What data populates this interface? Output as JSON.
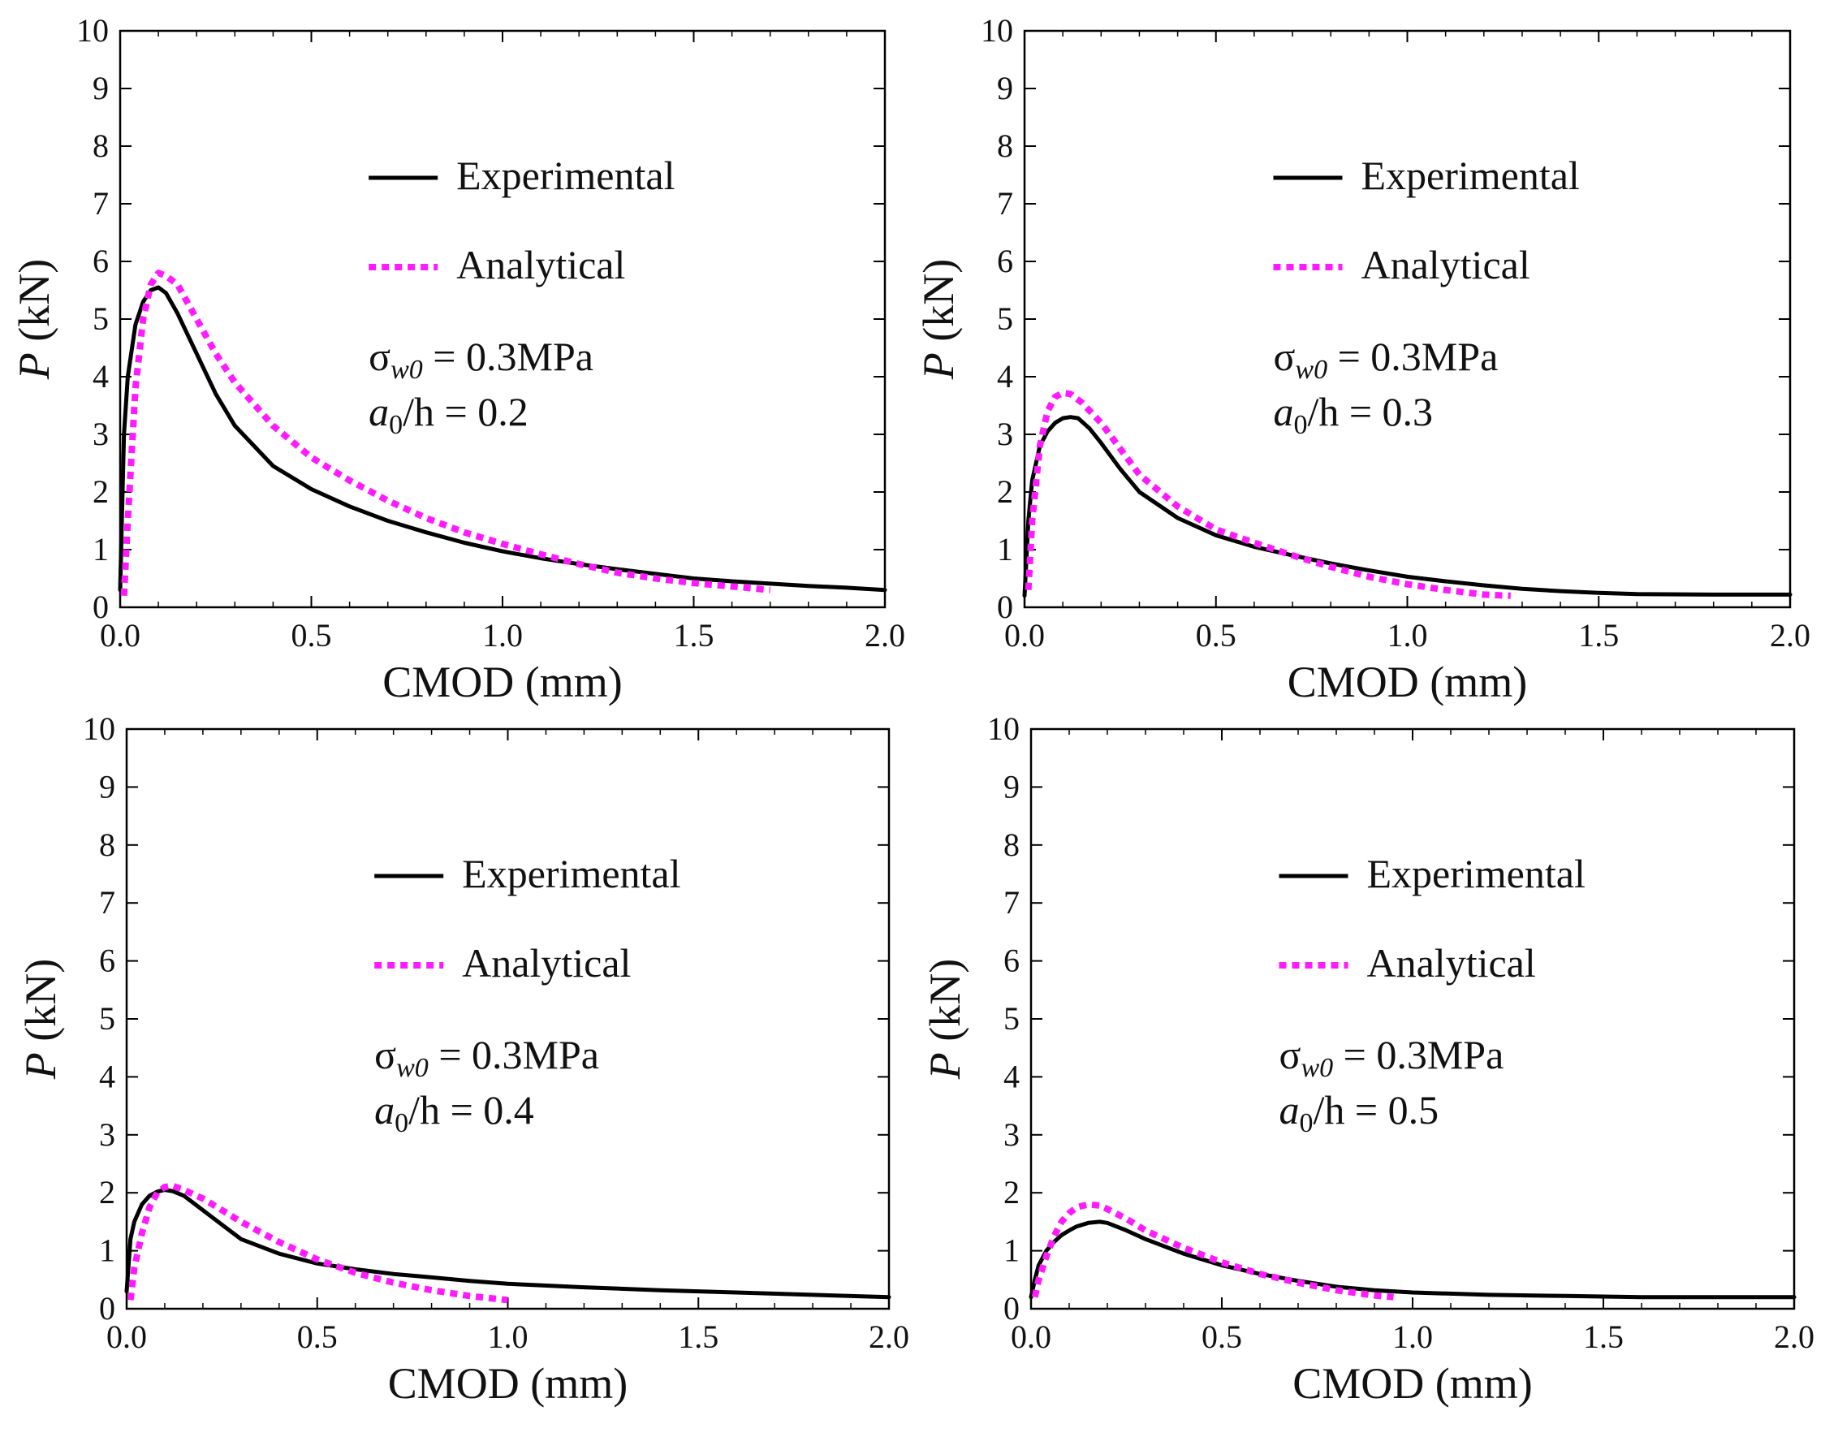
{
  "colors": {
    "experimental": "#000000",
    "analytical": "#ff1aff",
    "frame": "#000000"
  },
  "chart_data": [
    {
      "type": "line",
      "title": "",
      "xlabel": "CMOD (mm)",
      "ylabel_italic": "P",
      "ylabel_rest": " (kN)",
      "xlim": [
        0,
        2.0
      ],
      "ylim": [
        0,
        10
      ],
      "xticks": [
        "0.0",
        "0.5",
        "1.0",
        "1.5",
        "2.0"
      ],
      "yticks": [
        "0",
        "1",
        "2",
        "3",
        "4",
        "5",
        "6",
        "7",
        "8",
        "9",
        "10"
      ],
      "grid": false,
      "legend_position": "top-right",
      "annotation": {
        "sigma": "σ",
        "sigma_sub": "w0",
        "sigma_value": "= 0.3MPa",
        "ratio_a": "a",
        "ratio_sub": "0",
        "ratio_rest": "/h = 0.2"
      },
      "series": [
        {
          "name": "Experimental",
          "style": "solid",
          "x": [
            0,
            0.01,
            0.02,
            0.04,
            0.06,
            0.08,
            0.1,
            0.12,
            0.15,
            0.2,
            0.25,
            0.3,
            0.4,
            0.5,
            0.6,
            0.7,
            0.8,
            0.9,
            1.0,
            1.1,
            1.2,
            1.3,
            1.4,
            1.5,
            1.6,
            1.7,
            1.8,
            1.9,
            2.0
          ],
          "y": [
            0.3,
            3.0,
            4.0,
            4.9,
            5.3,
            5.5,
            5.55,
            5.45,
            5.1,
            4.4,
            3.7,
            3.15,
            2.45,
            2.05,
            1.75,
            1.5,
            1.3,
            1.12,
            0.97,
            0.85,
            0.75,
            0.66,
            0.58,
            0.5,
            0.45,
            0.41,
            0.37,
            0.34,
            0.3
          ]
        },
        {
          "name": "Analytical",
          "style": "dotted",
          "x": [
            0.01,
            0.02,
            0.04,
            0.06,
            0.08,
            0.1,
            0.12,
            0.15,
            0.2,
            0.25,
            0.3,
            0.4,
            0.5,
            0.6,
            0.7,
            0.8,
            0.9,
            1.0,
            1.1,
            1.2,
            1.3,
            1.4,
            1.5,
            1.6,
            1.7
          ],
          "y": [
            0.2,
            1.5,
            3.8,
            5.0,
            5.6,
            5.8,
            5.75,
            5.6,
            5.0,
            4.4,
            3.9,
            3.15,
            2.6,
            2.2,
            1.85,
            1.55,
            1.3,
            1.1,
            0.92,
            0.75,
            0.6,
            0.5,
            0.42,
            0.36,
            0.3
          ]
        }
      ]
    },
    {
      "type": "line",
      "title": "",
      "xlabel": "CMOD (mm)",
      "ylabel_italic": "P",
      "ylabel_rest": " (kN)",
      "xlim": [
        0,
        2.0
      ],
      "ylim": [
        0,
        10
      ],
      "xticks": [
        "0.0",
        "0.5",
        "1.0",
        "1.5",
        "2.0"
      ],
      "yticks": [
        "0",
        "1",
        "2",
        "3",
        "4",
        "5",
        "6",
        "7",
        "8",
        "9",
        "10"
      ],
      "grid": false,
      "legend_position": "top-right",
      "annotation": {
        "sigma": "σ",
        "sigma_sub": "w0",
        "sigma_value": "= 0.3MPa",
        "ratio_a": "a",
        "ratio_sub": "0",
        "ratio_rest": "/h = 0.3"
      },
      "series": [
        {
          "name": "Experimental",
          "style": "solid",
          "x": [
            0,
            0.01,
            0.02,
            0.04,
            0.06,
            0.08,
            0.1,
            0.12,
            0.14,
            0.17,
            0.2,
            0.25,
            0.3,
            0.4,
            0.5,
            0.6,
            0.7,
            0.8,
            0.9,
            1.0,
            1.1,
            1.2,
            1.3,
            1.4,
            1.5,
            1.6,
            1.8,
            2.0
          ],
          "y": [
            0.2,
            1.5,
            2.2,
            2.8,
            3.05,
            3.2,
            3.28,
            3.3,
            3.28,
            3.1,
            2.85,
            2.4,
            2.0,
            1.55,
            1.25,
            1.05,
            0.9,
            0.76,
            0.64,
            0.53,
            0.45,
            0.38,
            0.32,
            0.28,
            0.25,
            0.23,
            0.22,
            0.22
          ]
        },
        {
          "name": "Analytical",
          "style": "dotted",
          "x": [
            0.01,
            0.02,
            0.04,
            0.06,
            0.08,
            0.1,
            0.12,
            0.15,
            0.2,
            0.25,
            0.3,
            0.4,
            0.5,
            0.6,
            0.7,
            0.8,
            0.9,
            1.0,
            1.1,
            1.2,
            1.27
          ],
          "y": [
            0.3,
            1.5,
            2.8,
            3.4,
            3.65,
            3.72,
            3.7,
            3.55,
            3.2,
            2.75,
            2.3,
            1.75,
            1.35,
            1.12,
            0.9,
            0.7,
            0.53,
            0.4,
            0.3,
            0.22,
            0.2
          ]
        }
      ]
    },
    {
      "type": "line",
      "title": "",
      "xlabel": "CMOD (mm)",
      "ylabel_italic": "P",
      "ylabel_rest": " (kN)",
      "xlim": [
        0,
        2.0
      ],
      "ylim": [
        0,
        10
      ],
      "xticks": [
        "0.0",
        "0.5",
        "1.0",
        "1.5",
        "2.0"
      ],
      "yticks": [
        "0",
        "1",
        "2",
        "3",
        "4",
        "5",
        "6",
        "7",
        "8",
        "9",
        "10"
      ],
      "grid": false,
      "legend_position": "top-right",
      "annotation": {
        "sigma": "σ",
        "sigma_sub": "w0",
        "sigma_value": "= 0.3MPa",
        "ratio_a": "a",
        "ratio_sub": "0",
        "ratio_rest": "/h = 0.4"
      },
      "series": [
        {
          "name": "Experimental",
          "style": "solid",
          "x": [
            0,
            0.01,
            0.02,
            0.04,
            0.06,
            0.08,
            0.1,
            0.12,
            0.15,
            0.2,
            0.25,
            0.3,
            0.4,
            0.5,
            0.6,
            0.7,
            0.8,
            0.9,
            1.0,
            1.2,
            1.4,
            1.6,
            1.8,
            2.0
          ],
          "y": [
            0.3,
            1.2,
            1.5,
            1.8,
            1.95,
            2.02,
            2.05,
            2.03,
            1.95,
            1.7,
            1.45,
            1.2,
            0.95,
            0.78,
            0.68,
            0.6,
            0.54,
            0.48,
            0.43,
            0.37,
            0.32,
            0.28,
            0.24,
            0.2
          ]
        },
        {
          "name": "Analytical",
          "style": "dotted",
          "x": [
            0.01,
            0.02,
            0.04,
            0.06,
            0.08,
            0.1,
            0.12,
            0.15,
            0.2,
            0.25,
            0.3,
            0.4,
            0.5,
            0.6,
            0.7,
            0.8,
            0.9,
            1.0
          ],
          "y": [
            0.15,
            0.7,
            1.3,
            1.75,
            2.0,
            2.1,
            2.12,
            2.05,
            1.9,
            1.7,
            1.5,
            1.15,
            0.85,
            0.62,
            0.45,
            0.32,
            0.22,
            0.15
          ]
        }
      ]
    },
    {
      "type": "line",
      "title": "",
      "xlabel": "CMOD (mm)",
      "ylabel_italic": "P",
      "ylabel_rest": " (kN)",
      "xlim": [
        0,
        2.0
      ],
      "ylim": [
        0,
        10
      ],
      "xticks": [
        "0.0",
        "0.5",
        "1.0",
        "1.5",
        "2.0"
      ],
      "yticks": [
        "0",
        "1",
        "2",
        "3",
        "4",
        "5",
        "6",
        "7",
        "8",
        "9",
        "10"
      ],
      "grid": false,
      "legend_position": "top-right",
      "annotation": {
        "sigma": "σ",
        "sigma_sub": "w0",
        "sigma_value": "= 0.3MPa",
        "ratio_a": "a",
        "ratio_sub": "0",
        "ratio_rest": "/h = 0.5"
      },
      "series": [
        {
          "name": "Experimental",
          "style": "solid",
          "x": [
            0,
            0.01,
            0.02,
            0.04,
            0.06,
            0.08,
            0.1,
            0.12,
            0.15,
            0.18,
            0.2,
            0.25,
            0.3,
            0.4,
            0.5,
            0.6,
            0.7,
            0.8,
            0.9,
            1.0,
            1.2,
            1.4,
            1.6,
            1.8,
            2.0
          ],
          "y": [
            0.2,
            0.5,
            0.75,
            1.0,
            1.15,
            1.27,
            1.35,
            1.42,
            1.48,
            1.5,
            1.48,
            1.35,
            1.2,
            0.95,
            0.75,
            0.6,
            0.48,
            0.38,
            0.32,
            0.28,
            0.24,
            0.22,
            0.2,
            0.2,
            0.2
          ]
        },
        {
          "name": "Analytical",
          "style": "dotted",
          "x": [
            0.01,
            0.02,
            0.04,
            0.06,
            0.08,
            0.1,
            0.12,
            0.15,
            0.18,
            0.2,
            0.25,
            0.3,
            0.4,
            0.5,
            0.6,
            0.7,
            0.8,
            0.9,
            0.95
          ],
          "y": [
            0.2,
            0.5,
            0.9,
            1.25,
            1.5,
            1.65,
            1.75,
            1.8,
            1.78,
            1.72,
            1.55,
            1.35,
            1.05,
            0.8,
            0.6,
            0.45,
            0.32,
            0.23,
            0.2
          ]
        }
      ]
    }
  ]
}
